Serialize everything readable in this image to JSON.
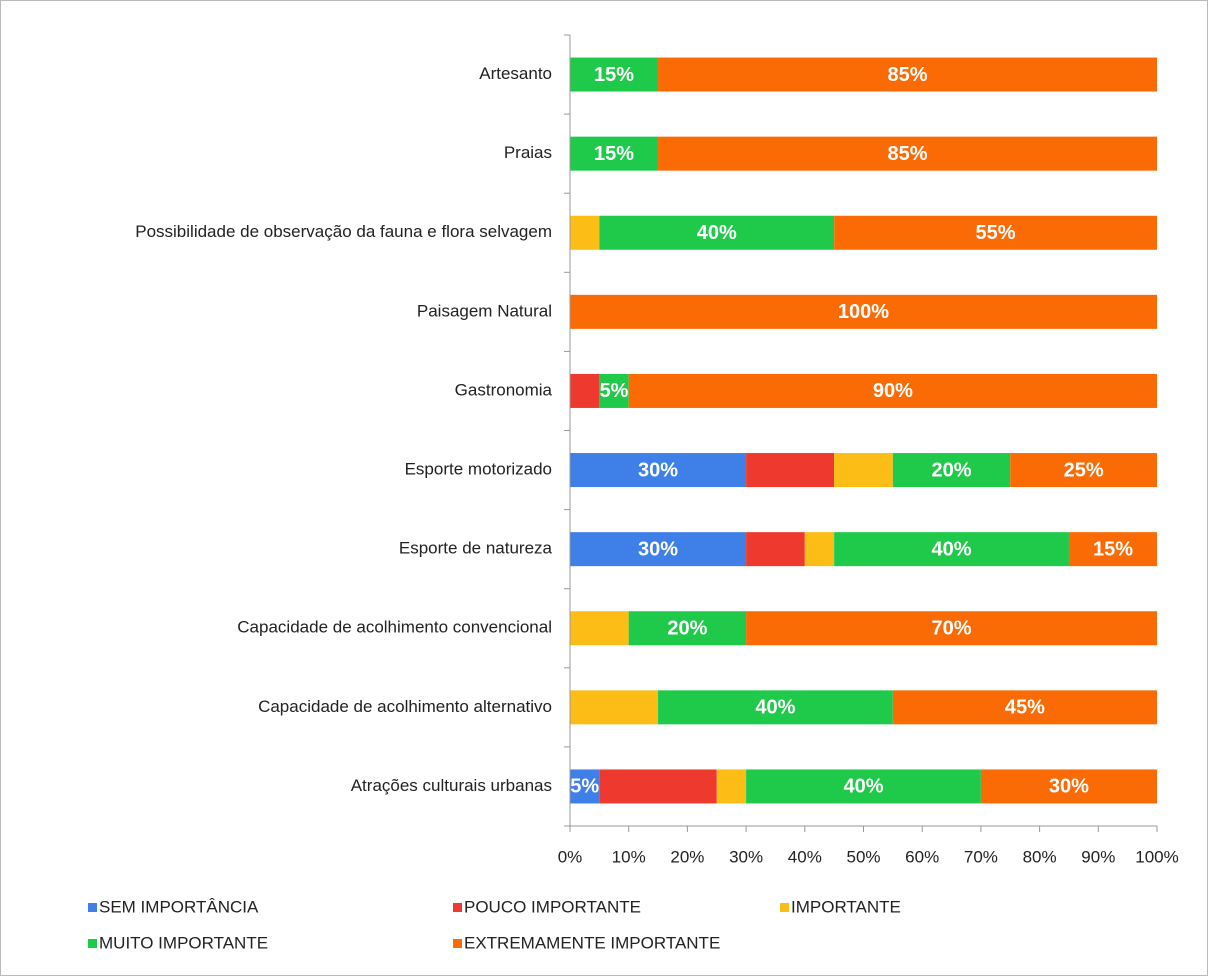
{
  "chart_data": {
    "type": "stacked_bar_horizontal",
    "categories": [
      "Artesanto",
      "Praias",
      "Possibilidade de observação da fauna e flora selvagem",
      "Paisagem Natural",
      "Gastronomia",
      "Esporte motorizado",
      "Esporte de natureza",
      "Capacidade de acolhimento convencional",
      "Capacidade de acolhimento alternativo",
      "Atrações culturais urbanas"
    ],
    "series": [
      {
        "name": "SEM IMPORTÂNCIA",
        "color": "#3f7fe8",
        "values": [
          0,
          0,
          0,
          0,
          0,
          30,
          30,
          0,
          0,
          5
        ],
        "value_labels": [
          null,
          null,
          null,
          null,
          null,
          "30%",
          "30%",
          null,
          null,
          "5%"
        ]
      },
      {
        "name": "POUCO IMPORTANTE",
        "color": "#ee3a2e",
        "values": [
          0,
          0,
          0,
          0,
          5,
          15,
          10,
          0,
          0,
          20
        ],
        "value_labels": [
          null,
          null,
          null,
          null,
          null,
          null,
          null,
          null,
          null,
          null
        ]
      },
      {
        "name": "IMPORTANTE",
        "color": "#fbbd16",
        "values": [
          0,
          0,
          5,
          0,
          0,
          10,
          5,
          10,
          15,
          5
        ],
        "value_labels": [
          null,
          null,
          null,
          null,
          null,
          null,
          null,
          null,
          null,
          null
        ]
      },
      {
        "name": "MUITO IMPORTANTE",
        "color": "#1fc94a",
        "values": [
          15,
          15,
          40,
          0,
          5,
          20,
          40,
          20,
          40,
          40
        ],
        "value_labels": [
          "15%",
          "15%",
          "40%",
          null,
          "5%",
          "20%",
          "40%",
          "20%",
          "40%",
          "40%"
        ]
      },
      {
        "name": "EXTREMAMENTE IMPORTANTE",
        "color": "#fa6b05",
        "values": [
          85,
          85,
          55,
          100,
          90,
          25,
          15,
          70,
          45,
          30
        ],
        "value_labels": [
          "85%",
          "85%",
          "55%",
          "100%",
          "90%",
          "25%",
          "15%",
          "70%",
          "45%",
          "30%"
        ]
      }
    ],
    "xlim": [
      0,
      100
    ],
    "xticks": [
      {
        "value": 0,
        "label": "0%"
      },
      {
        "value": 10,
        "label": "10%"
      },
      {
        "value": 20,
        "label": "20%"
      },
      {
        "value": 30,
        "label": "30%"
      },
      {
        "value": 40,
        "label": "40%"
      },
      {
        "value": 50,
        "label": "50%"
      },
      {
        "value": 60,
        "label": "60%"
      },
      {
        "value": 70,
        "label": "70%"
      },
      {
        "value": 80,
        "label": "80%"
      },
      {
        "value": 90,
        "label": "90%"
      },
      {
        "value": 100,
        "label": "100%"
      }
    ],
    "grid": false,
    "legend": "bottom"
  }
}
